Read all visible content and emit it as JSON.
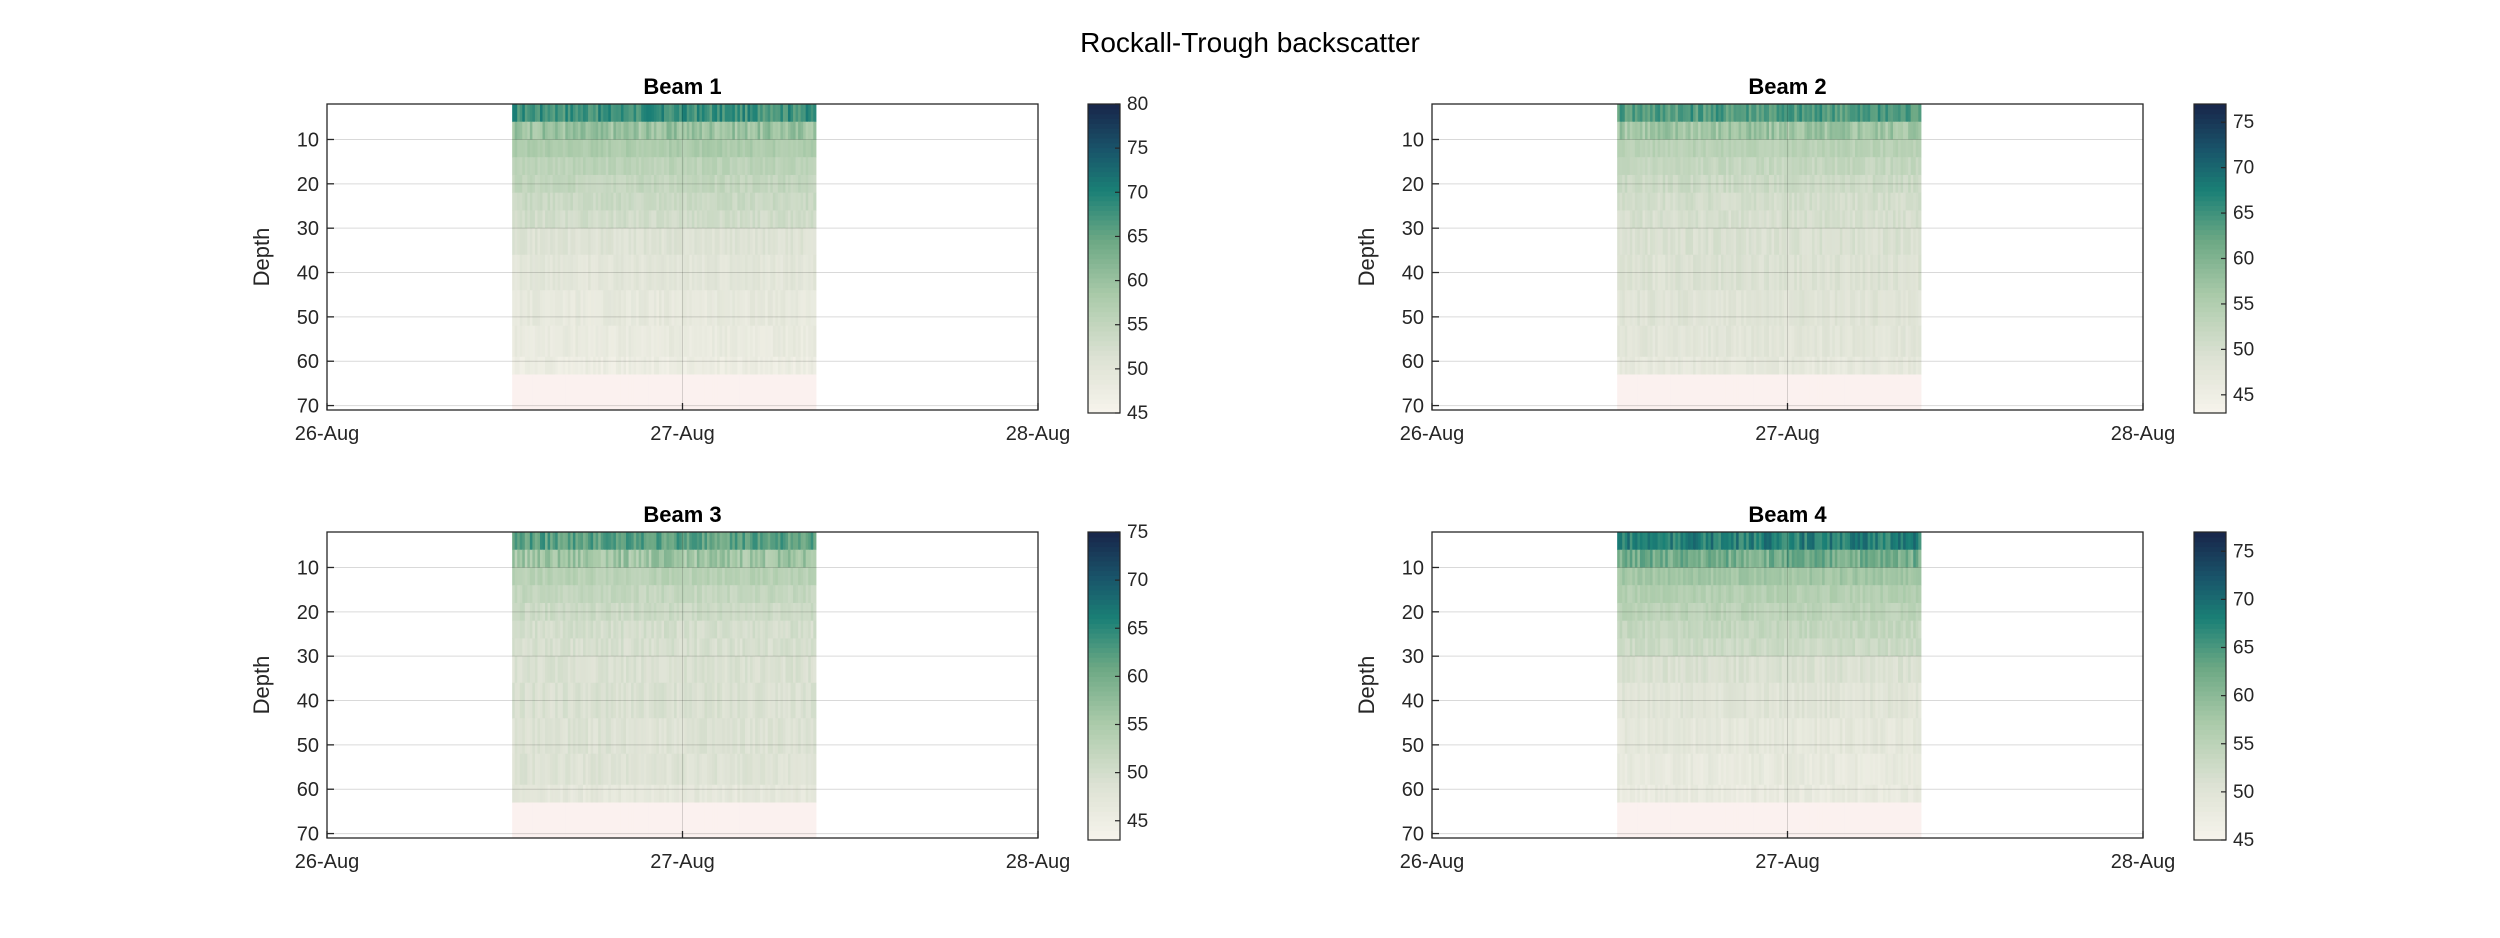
{
  "figure": {
    "title": "Rockall-Trough backscatter"
  },
  "chart_data": [
    {
      "type": "heatmap",
      "title": "Beam 1",
      "xlabel": "",
      "ylabel": "Depth",
      "x_ticks": [
        "26-Aug",
        "27-Aug",
        "28-Aug"
      ],
      "xlim": [
        "2021-08-26T00:00",
        "2021-08-28T00:00"
      ],
      "ylim": [
        2,
        71
      ],
      "y_reversed": true,
      "y_ticks": [
        10,
        20,
        30,
        40,
        50,
        60,
        70
      ],
      "grid": true,
      "colorbar": {
        "ticks": [
          45,
          50,
          55,
          60,
          65,
          70,
          75,
          80
        ],
        "range": [
          45,
          80
        ]
      },
      "data_time_range": [
        "2021-08-26T12:30",
        "2021-08-27T09:00"
      ],
      "profile": [
        {
          "depth_range": [
            2,
            6
          ],
          "value": 68
        },
        {
          "depth_range": [
            6,
            10
          ],
          "value": 60
        },
        {
          "depth_range": [
            10,
            14
          ],
          "value": 58
        },
        {
          "depth_range": [
            14,
            18
          ],
          "value": 56
        },
        {
          "depth_range": [
            18,
            22
          ],
          "value": 55
        },
        {
          "depth_range": [
            22,
            26
          ],
          "value": 54
        },
        {
          "depth_range": [
            26,
            30
          ],
          "value": 53
        },
        {
          "depth_range": [
            30,
            36
          ],
          "value": 51
        },
        {
          "depth_range": [
            36,
            44
          ],
          "value": 50
        },
        {
          "depth_range": [
            44,
            52
          ],
          "value": 49
        },
        {
          "depth_range": [
            52,
            59
          ],
          "value": 48.5
        },
        {
          "depth_range": [
            59,
            63
          ],
          "value": 47.5
        },
        {
          "depth_range": [
            63,
            71
          ],
          "value": 45
        }
      ]
    },
    {
      "type": "heatmap",
      "title": "Beam 2",
      "xlabel": "",
      "ylabel": "Depth",
      "x_ticks": [
        "26-Aug",
        "27-Aug",
        "28-Aug"
      ],
      "xlim": [
        "2021-08-26T00:00",
        "2021-08-28T00:00"
      ],
      "ylim": [
        2,
        71
      ],
      "y_reversed": true,
      "y_ticks": [
        10,
        20,
        30,
        40,
        50,
        60,
        70
      ],
      "grid": true,
      "colorbar": {
        "ticks": [
          45,
          50,
          55,
          60,
          65,
          70,
          75
        ],
        "range": [
          43,
          77
        ]
      },
      "data_time_range": [
        "2021-08-26T12:30",
        "2021-08-27T09:00"
      ],
      "profile": [
        {
          "depth_range": [
            2,
            6
          ],
          "value": 64
        },
        {
          "depth_range": [
            6,
            10
          ],
          "value": 57
        },
        {
          "depth_range": [
            10,
            14
          ],
          "value": 54
        },
        {
          "depth_range": [
            14,
            18
          ],
          "value": 52.5
        },
        {
          "depth_range": [
            18,
            22
          ],
          "value": 51.5
        },
        {
          "depth_range": [
            22,
            26
          ],
          "value": 50.5
        },
        {
          "depth_range": [
            26,
            30
          ],
          "value": 50
        },
        {
          "depth_range": [
            30,
            36
          ],
          "value": 49.5
        },
        {
          "depth_range": [
            36,
            44
          ],
          "value": 49
        },
        {
          "depth_range": [
            44,
            52
          ],
          "value": 48.5
        },
        {
          "depth_range": [
            52,
            59
          ],
          "value": 48
        },
        {
          "depth_range": [
            59,
            63
          ],
          "value": 47
        },
        {
          "depth_range": [
            63,
            71
          ],
          "value": 43
        }
      ]
    },
    {
      "type": "heatmap",
      "title": "Beam 3",
      "xlabel": "",
      "ylabel": "Depth",
      "x_ticks": [
        "26-Aug",
        "27-Aug",
        "28-Aug"
      ],
      "xlim": [
        "2021-08-26T00:00",
        "2021-08-28T00:00"
      ],
      "ylim": [
        2,
        71
      ],
      "y_reversed": true,
      "y_ticks": [
        10,
        20,
        30,
        40,
        50,
        60,
        70
      ],
      "grid": true,
      "colorbar": {
        "ticks": [
          45,
          50,
          55,
          60,
          65,
          70,
          75
        ],
        "range": [
          43,
          75
        ]
      },
      "data_time_range": [
        "2021-08-26T12:30",
        "2021-08-27T09:00"
      ],
      "profile": [
        {
          "depth_range": [
            2,
            6
          ],
          "value": 62
        },
        {
          "depth_range": [
            6,
            10
          ],
          "value": 56
        },
        {
          "depth_range": [
            10,
            14
          ],
          "value": 53.5
        },
        {
          "depth_range": [
            14,
            18
          ],
          "value": 52
        },
        {
          "depth_range": [
            18,
            22
          ],
          "value": 51
        },
        {
          "depth_range": [
            22,
            26
          ],
          "value": 50
        },
        {
          "depth_range": [
            26,
            30
          ],
          "value": 49.5
        },
        {
          "depth_range": [
            30,
            36
          ],
          "value": 49
        },
        {
          "depth_range": [
            36,
            44
          ],
          "value": 49
        },
        {
          "depth_range": [
            44,
            52
          ],
          "value": 48.5
        },
        {
          "depth_range": [
            52,
            59
          ],
          "value": 48.5
        },
        {
          "depth_range": [
            59,
            63
          ],
          "value": 47
        },
        {
          "depth_range": [
            63,
            71
          ],
          "value": 43
        }
      ]
    },
    {
      "type": "heatmap",
      "title": "Beam 4",
      "xlabel": "",
      "ylabel": "Depth",
      "x_ticks": [
        "26-Aug",
        "27-Aug",
        "28-Aug"
      ],
      "xlim": [
        "2021-08-26T00:00",
        "2021-08-28T00:00"
      ],
      "ylim": [
        2,
        71
      ],
      "y_reversed": true,
      "y_ticks": [
        10,
        20,
        30,
        40,
        50,
        60,
        70
      ],
      "grid": true,
      "colorbar": {
        "ticks": [
          45,
          50,
          55,
          60,
          65,
          70,
          75
        ],
        "range": [
          45,
          77
        ]
      },
      "data_time_range": [
        "2021-08-26T12:30",
        "2021-08-27T09:00"
      ],
      "profile": [
        {
          "depth_range": [
            2,
            6
          ],
          "value": 68
        },
        {
          "depth_range": [
            6,
            10
          ],
          "value": 62
        },
        {
          "depth_range": [
            10,
            14
          ],
          "value": 58
        },
        {
          "depth_range": [
            14,
            18
          ],
          "value": 56
        },
        {
          "depth_range": [
            18,
            22
          ],
          "value": 55
        },
        {
          "depth_range": [
            22,
            26
          ],
          "value": 54
        },
        {
          "depth_range": [
            26,
            30
          ],
          "value": 53
        },
        {
          "depth_range": [
            30,
            36
          ],
          "value": 51
        },
        {
          "depth_range": [
            36,
            44
          ],
          "value": 50
        },
        {
          "depth_range": [
            44,
            52
          ],
          "value": 49
        },
        {
          "depth_range": [
            52,
            59
          ],
          "value": 48.5
        },
        {
          "depth_range": [
            59,
            63
          ],
          "value": 48
        },
        {
          "depth_range": [
            63,
            71
          ],
          "value": 46
        }
      ]
    }
  ]
}
